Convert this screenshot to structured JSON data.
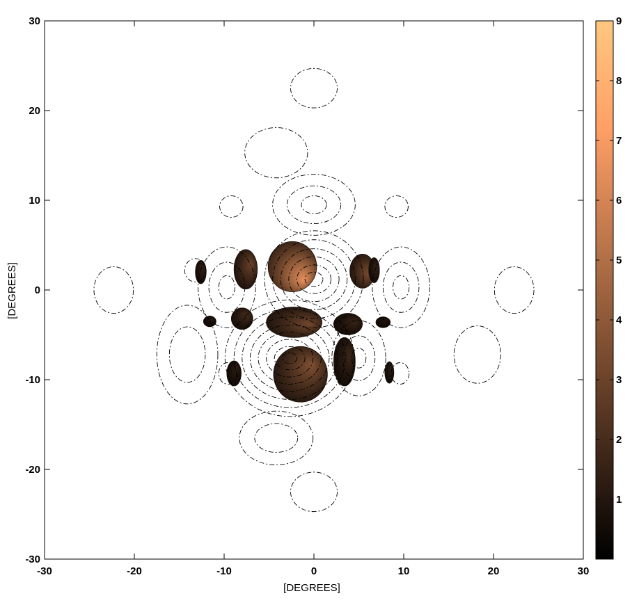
{
  "chart_data": {
    "type": "contour",
    "title": "",
    "xlabel": "[DEGREES]",
    "ylabel": "[DEGREES]",
    "xlim": [
      -30,
      30
    ],
    "ylim": [
      -30,
      30
    ],
    "xticks": [
      -30,
      -20,
      -10,
      0,
      10,
      20,
      30
    ],
    "yticks": [
      -30,
      -20,
      -10,
      0,
      10,
      20,
      30
    ],
    "colorbar": {
      "range": [
        0,
        9
      ],
      "ticks": [
        1,
        2,
        3,
        4,
        5,
        6,
        7,
        8,
        9
      ],
      "colormap": "copper",
      "color_low": "#000000",
      "color_high": "#ffc77f"
    },
    "contour_line_style": "dash-dot",
    "contour_rings": [
      {
        "center": [
          0,
          22.5
        ],
        "radii": [
          [
            2.6,
            2.2
          ]
        ]
      },
      {
        "center": [
          -4.2,
          15.3
        ],
        "radii": [
          [
            3.5,
            2.8
          ]
        ]
      },
      {
        "center": [
          0,
          9.5
        ],
        "radii": [
          [
            4.6,
            3.4
          ],
          [
            3.0,
            2.1
          ],
          [
            1.4,
            1.0
          ]
        ]
      },
      {
        "center": [
          -9.2,
          9.3
        ],
        "radii": [
          [
            1.3,
            1.2
          ]
        ]
      },
      {
        "center": [
          9.2,
          9.3
        ],
        "radii": [
          [
            1.3,
            1.2
          ]
        ]
      },
      {
        "center": [
          -22.3,
          0
        ],
        "radii": [
          [
            2.2,
            2.6
          ]
        ]
      },
      {
        "center": [
          22.3,
          0
        ],
        "radii": [
          [
            2.2,
            2.6
          ]
        ]
      },
      {
        "center": [
          -13.2,
          2.2
        ],
        "radii": [
          [
            1.2,
            1.3
          ]
        ]
      },
      {
        "center": [
          -9.7,
          0.3
        ],
        "radii": [
          [
            3.2,
            4.5
          ],
          [
            2.0,
            2.8
          ],
          [
            0.9,
            1.3
          ]
        ]
      },
      {
        "center": [
          9.7,
          0.3
        ],
        "radii": [
          [
            3.2,
            4.5
          ],
          [
            2.0,
            2.8
          ],
          [
            0.9,
            1.3
          ]
        ]
      },
      {
        "center": [
          0,
          1.2
        ],
        "radii": [
          [
            5.5,
            5.4
          ],
          [
            4.6,
            4.4
          ],
          [
            3.7,
            3.4
          ],
          [
            2.8,
            2.5
          ],
          [
            1.9,
            1.6
          ],
          [
            1.0,
            0.8
          ]
        ]
      },
      {
        "center": [
          -2.7,
          -7.6
        ],
        "radii": [
          [
            7.2,
            6.5
          ],
          [
            6.2,
            5.5
          ],
          [
            5.3,
            4.6
          ],
          [
            4.4,
            3.7
          ],
          [
            3.5,
            2.9
          ],
          [
            2.6,
            2.1
          ],
          [
            1.7,
            1.3
          ],
          [
            0.8,
            0.6
          ]
        ]
      },
      {
        "center": [
          -14.1,
          -7.2
        ],
        "radii": [
          [
            3.4,
            5.5
          ],
          [
            2.0,
            3.1
          ]
        ]
      },
      {
        "center": [
          5.0,
          -7.6
        ],
        "radii": [
          [
            3.0,
            4.2
          ],
          [
            1.8,
            2.5
          ],
          [
            0.8,
            1.1
          ]
        ]
      },
      {
        "center": [
          18.2,
          -7.2
        ],
        "radii": [
          [
            2.6,
            3.2
          ]
        ]
      },
      {
        "center": [
          -9.6,
          -9.3
        ],
        "radii": [
          [
            1.0,
            1.2
          ]
        ]
      },
      {
        "center": [
          9.6,
          -9.3
        ],
        "radii": [
          [
            1.0,
            1.2
          ]
        ]
      },
      {
        "center": [
          -4.2,
          -16.5
        ],
        "radii": [
          [
            4.1,
            3.0
          ],
          [
            2.4,
            1.6
          ]
        ]
      },
      {
        "center": [
          0,
          -22.5
        ],
        "radii": [
          [
            2.6,
            2.2
          ]
        ]
      }
    ],
    "filled_regions": [
      {
        "name": "upper-center-lobe",
        "center": [
          -2.4,
          2.6
        ],
        "radii": [
          2.7,
          2.8
        ],
        "peak": 6.5,
        "light": [
          0.7,
          -0.8
        ]
      },
      {
        "name": "upper-left-lobe",
        "center": [
          -7.6,
          2.3
        ],
        "radii": [
          1.3,
          2.2
        ],
        "peak": 3.0,
        "light": [
          0.7,
          0.4
        ]
      },
      {
        "name": "upper-right-lobe",
        "center": [
          5.4,
          2.1
        ],
        "radii": [
          1.4,
          1.9
        ],
        "peak": 3.5,
        "light": [
          0.8,
          -0.2
        ]
      },
      {
        "name": "far-left-sliver",
        "center": [
          -12.6,
          2.0
        ],
        "radii": [
          0.6,
          1.3
        ],
        "peak": 1.5,
        "light": [
          0.6,
          0.5
        ]
      },
      {
        "name": "far-right-sliver",
        "center": [
          6.7,
          2.2
        ],
        "radii": [
          0.6,
          1.4
        ],
        "peak": 1.5,
        "light": [
          0.6,
          0.3
        ]
      },
      {
        "name": "middle-center-lobe",
        "center": [
          -2.2,
          -3.6
        ],
        "radii": [
          3.1,
          1.7
        ],
        "peak": 3.2,
        "light": [
          0.8,
          -0.2
        ]
      },
      {
        "name": "middle-left-lobe",
        "center": [
          -8.0,
          -3.2
        ],
        "radii": [
          1.2,
          1.2
        ],
        "peak": 2.0,
        "light": [
          0.6,
          0.5
        ]
      },
      {
        "name": "middle-right-lobe",
        "center": [
          3.8,
          -3.8
        ],
        "radii": [
          1.6,
          1.2
        ],
        "peak": 1.6,
        "light": [
          0.7,
          0.3
        ]
      },
      {
        "name": "left-small-sliver",
        "center": [
          -11.6,
          -3.5
        ],
        "radii": [
          0.7,
          0.6
        ],
        "peak": 1.1,
        "light": [
          0.5,
          0.5
        ]
      },
      {
        "name": "right-small-sliver",
        "center": [
          7.7,
          -3.6
        ],
        "radii": [
          0.8,
          0.6
        ],
        "peak": 1.1,
        "light": [
          0.5,
          0.5
        ]
      },
      {
        "name": "lower-center-lobe",
        "center": [
          -1.5,
          -9.4
        ],
        "radii": [
          3.0,
          3.1
        ],
        "peak": 3.6,
        "light": [
          0.6,
          0.5
        ]
      },
      {
        "name": "lower-left-lobe",
        "center": [
          -8.9,
          -9.3
        ],
        "radii": [
          0.8,
          1.4
        ],
        "peak": 1.3,
        "light": [
          0.5,
          0.5
        ]
      },
      {
        "name": "lower-right-lobe",
        "center": [
          3.4,
          -8.0
        ],
        "radii": [
          1.2,
          2.7
        ],
        "peak": 1.7,
        "light": [
          0.7,
          0.4
        ]
      },
      {
        "name": "lower-far-right-sliver",
        "center": [
          8.4,
          -9.2
        ],
        "radii": [
          0.5,
          1.2
        ],
        "peak": 1.3,
        "light": [
          0.5,
          0.4
        ]
      }
    ]
  }
}
